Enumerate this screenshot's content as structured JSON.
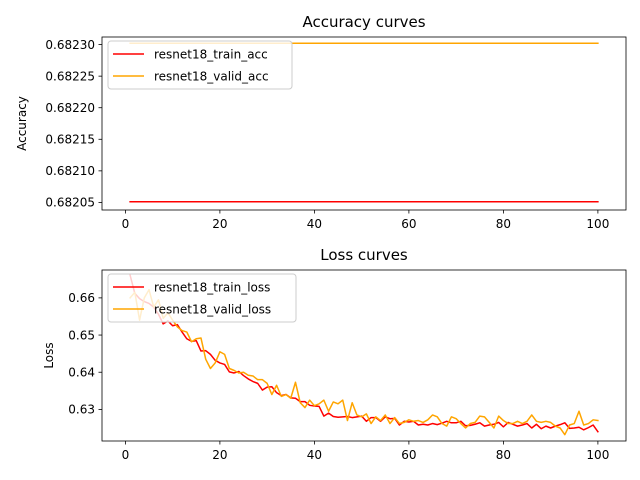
{
  "chart_data": [
    {
      "type": "line",
      "title": "Accuracy curves",
      "xlabel": "",
      "ylabel": "Accuracy",
      "xlim": [
        -4.95,
        105.95
      ],
      "ylim": [
        0.682038,
        0.682312
      ],
      "xticks": [
        0,
        20,
        40,
        60,
        80,
        100
      ],
      "yticks": [
        0.68205,
        0.6821,
        0.68215,
        0.6822,
        0.68225,
        0.6823
      ],
      "ytick_labels": [
        "0.68205",
        "0.68210",
        "0.68215",
        "0.68220",
        "0.68225",
        "0.68230"
      ],
      "grid": false,
      "legend": "upper-left",
      "series": [
        {
          "name": "resnet18_train_acc",
          "color": "#ff0000",
          "x_start": 1,
          "x_end": 100,
          "values": [
            0.682051,
            0.682051
          ]
        },
        {
          "name": "resnet18_valid_acc",
          "color": "#ffa500",
          "x_start": 1,
          "x_end": 100,
          "values": [
            0.682302,
            0.682302
          ]
        }
      ]
    },
    {
      "type": "line",
      "title": "Loss curves",
      "xlabel": "",
      "ylabel": "Loss",
      "xlim": [
        -4.95,
        105.95
      ],
      "ylim": [
        0.6215,
        0.6675
      ],
      "xticks": [
        0,
        20,
        40,
        60,
        80,
        100
      ],
      "yticks": [
        0.63,
        0.64,
        0.65,
        0.66
      ],
      "ytick_labels": [
        "0.63",
        "0.64",
        "0.65",
        "0.66"
      ],
      "grid": false,
      "legend": "upper-left",
      "series": [
        {
          "name": "resnet18_train_loss",
          "color": "#ff0000",
          "x_start": 1,
          "values": [
            0.6661,
            0.6612,
            0.6598,
            0.659,
            0.6585,
            0.6575,
            0.6556,
            0.653,
            0.6538,
            0.6525,
            0.6528,
            0.6508,
            0.649,
            0.6483,
            0.6485,
            0.6457,
            0.6458,
            0.6448,
            0.6432,
            0.6425,
            0.6421,
            0.6401,
            0.6398,
            0.6402,
            0.6391,
            0.6382,
            0.6375,
            0.637,
            0.6352,
            0.636,
            0.6361,
            0.6345,
            0.6337,
            0.634,
            0.6331,
            0.633,
            0.6321,
            0.6321,
            0.6311,
            0.6309,
            0.6308,
            0.6282,
            0.629,
            0.6281,
            0.6279,
            0.628,
            0.6281,
            0.6278,
            0.628,
            0.6282,
            0.6268,
            0.6278,
            0.6278,
            0.6268,
            0.628,
            0.6275,
            0.6276,
            0.6258,
            0.6268,
            0.6266,
            0.6268,
            0.6258,
            0.626,
            0.6258,
            0.6262,
            0.6259,
            0.6263,
            0.6268,
            0.6264,
            0.6264,
            0.6268,
            0.6256,
            0.6257,
            0.626,
            0.6264,
            0.6255,
            0.6258,
            0.626,
            0.6265,
            0.6253,
            0.6265,
            0.626,
            0.6255,
            0.6258,
            0.6262,
            0.625,
            0.626,
            0.6248,
            0.6255,
            0.625,
            0.6255,
            0.6259,
            0.6264,
            0.6249,
            0.625,
            0.6252,
            0.6245,
            0.6251,
            0.6258,
            0.624
          ]
        },
        {
          "name": "resnet18_valid_loss",
          "color": "#ffa500",
          "x_start": 1,
          "values": [
            0.66,
            0.6615,
            0.654,
            0.66,
            0.6622,
            0.6575,
            0.6595,
            0.6545,
            0.656,
            0.654,
            0.6522,
            0.6512,
            0.6508,
            0.6482,
            0.649,
            0.6492,
            0.6435,
            0.641,
            0.6425,
            0.6455,
            0.6448,
            0.641,
            0.6405,
            0.6398,
            0.64,
            0.6392,
            0.639,
            0.638,
            0.638,
            0.637,
            0.634,
            0.6365,
            0.6335,
            0.634,
            0.633,
            0.6373,
            0.6318,
            0.6305,
            0.6325,
            0.631,
            0.6315,
            0.6325,
            0.6295,
            0.632,
            0.6315,
            0.6325,
            0.627,
            0.6318,
            0.6285,
            0.628,
            0.6288,
            0.6262,
            0.628,
            0.627,
            0.6285,
            0.6262,
            0.6278,
            0.6262,
            0.6265,
            0.6272,
            0.6268,
            0.627,
            0.6265,
            0.6272,
            0.6285,
            0.628,
            0.6262,
            0.6255,
            0.628,
            0.6275,
            0.6262,
            0.625,
            0.6262,
            0.6265,
            0.6282,
            0.628,
            0.6265,
            0.625,
            0.6282,
            0.627,
            0.6262,
            0.6262,
            0.6268,
            0.6262,
            0.6268,
            0.6285,
            0.6268,
            0.6265,
            0.6268,
            0.6265,
            0.6255,
            0.625,
            0.6232,
            0.6258,
            0.6262,
            0.6295,
            0.6258,
            0.6262,
            0.6272,
            0.627
          ]
        }
      ]
    }
  ]
}
